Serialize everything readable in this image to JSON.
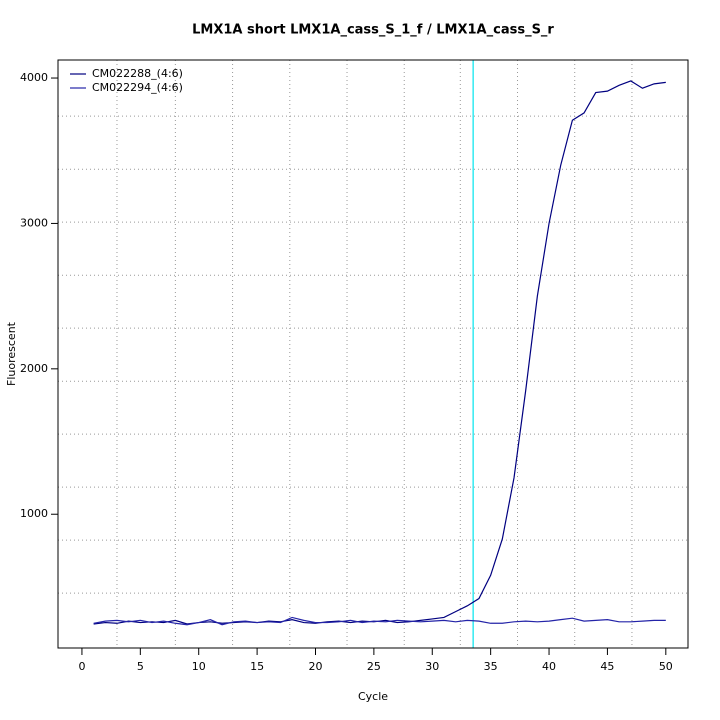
{
  "chart_data": {
    "type": "line",
    "title": "LMX1A short LMX1A_cass_S_1_f / LMX1A_cass_S_r",
    "x_label": "Cycle",
    "y_label": "Fluorescent",
    "x": [
      1,
      2,
      3,
      4,
      5,
      6,
      7,
      8,
      9,
      10,
      11,
      12,
      13,
      14,
      15,
      16,
      17,
      18,
      19,
      20,
      21,
      22,
      23,
      24,
      25,
      26,
      27,
      28,
      29,
      30,
      31,
      32,
      33,
      34,
      35,
      36,
      37,
      38,
      39,
      40,
      41,
      42,
      43,
      44,
      45,
      46,
      47,
      48,
      49,
      50
    ],
    "series": [
      {
        "name": "CM022288_(4:6)",
        "color": "#000080",
        "values": [
          245,
          255,
          250,
          265,
          255,
          260,
          255,
          270,
          245,
          255,
          260,
          250,
          255,
          260,
          255,
          265,
          260,
          275,
          255,
          250,
          260,
          265,
          255,
          265,
          260,
          270,
          255,
          260,
          270,
          280,
          290,
          330,
          370,
          420,
          580,
          830,
          1250,
          1850,
          2500,
          3000,
          3400,
          3710,
          3760,
          3900,
          3910,
          3950,
          3980,
          3930,
          3960,
          3970
        ]
      },
      {
        "name": "CM022294_(4:6)",
        "color": "#2424a8",
        "values": [
          250,
          265,
          270,
          260,
          270,
          255,
          265,
          250,
          240,
          255,
          275,
          240,
          260,
          265,
          255,
          260,
          255,
          290,
          270,
          255,
          255,
          260,
          270,
          255,
          265,
          260,
          270,
          265,
          260,
          265,
          270,
          260,
          270,
          265,
          250,
          250,
          260,
          265,
          260,
          265,
          275,
          285,
          265,
          270,
          275,
          260,
          260,
          265,
          270,
          270
        ]
      }
    ],
    "xlim": [
      -2.05,
      51.9
    ],
    "ylim": [
      80,
      4124
    ],
    "xticks": [
      0,
      5,
      10,
      15,
      20,
      25,
      30,
      35,
      40,
      45,
      50
    ],
    "yticks": [
      1000,
      2000,
      3000,
      4000
    ],
    "grid_x": [
      3,
      8,
      12.9,
      17.8,
      22.7,
      27.6,
      32.4,
      37.3,
      42.2,
      47.1
    ],
    "grid_y": [
      457,
      822,
      1186,
      1551,
      1915,
      2280,
      2644,
      3009,
      3373,
      3738
    ],
    "threshold_x": 33.5,
    "threshold_color": "#00e5ee",
    "legend": "top-left"
  }
}
